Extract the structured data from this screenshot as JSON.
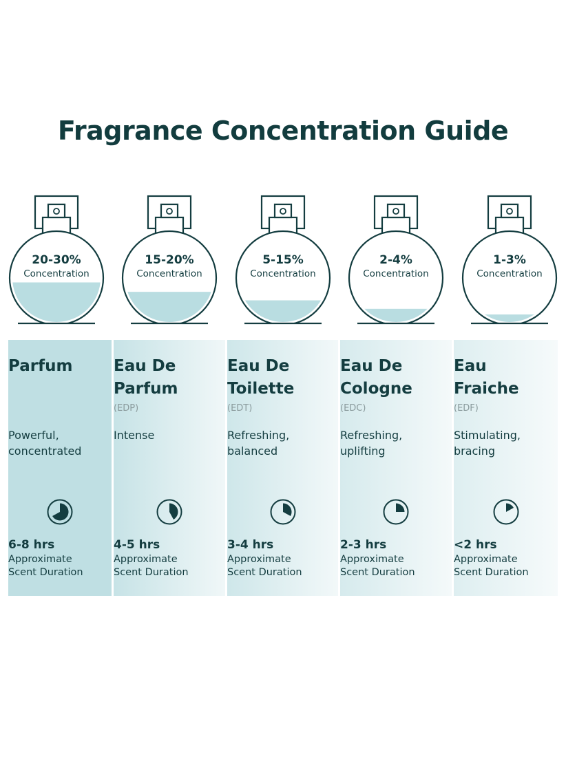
{
  "title": "Fragrance Concentration Guide",
  "colors": {
    "ink": "#143d40",
    "liquid": "#b9dde1",
    "panel_dark": "#bfdfe3",
    "panel_light": "#eef6f7"
  },
  "types": [
    {
      "percent": "20-30%",
      "concentration_label": "Concentration",
      "fill_level": 0.42,
      "name_lines": [
        "Parfum",
        ""
      ],
      "abbr": "",
      "desc_lines": [
        "Powerful,",
        "concentrated"
      ],
      "duration": "6-8 hrs",
      "duration_fraction": 0.67,
      "sub_lines": [
        "Approximate",
        "Scent Duration"
      ]
    },
    {
      "percent": "15-20%",
      "concentration_label": "Concentration",
      "fill_level": 0.32,
      "name_lines": [
        "Eau De",
        "Parfum"
      ],
      "abbr": "(EDP)",
      "desc_lines": [
        "Intense",
        ""
      ],
      "duration": "4-5 hrs",
      "duration_fraction": 0.42,
      "sub_lines": [
        "Approximate",
        "Scent Duration"
      ]
    },
    {
      "percent": "5-15%",
      "concentration_label": "Concentration",
      "fill_level": 0.23,
      "name_lines": [
        "Eau De",
        "Toilette"
      ],
      "abbr": "(EDT)",
      "desc_lines": [
        "Refreshing,",
        "balanced"
      ],
      "duration": "3-4 hrs",
      "duration_fraction": 0.33,
      "sub_lines": [
        "Approximate",
        "Scent Duration"
      ]
    },
    {
      "percent": "2-4%",
      "concentration_label": "Concentration",
      "fill_level": 0.14,
      "name_lines": [
        "Eau De",
        "Cologne"
      ],
      "abbr": "(EDC)",
      "desc_lines": [
        "Refreshing,",
        "uplifting"
      ],
      "duration": "2-3 hrs",
      "duration_fraction": 0.25,
      "sub_lines": [
        "Approximate",
        "Scent Duration"
      ]
    },
    {
      "percent": "1-3%",
      "concentration_label": "Concentration",
      "fill_level": 0.08,
      "name_lines": [
        "Eau",
        "Fraiche"
      ],
      "abbr": "(EDF)",
      "desc_lines": [
        "Stimulating,",
        "bracing"
      ],
      "duration": "<2 hrs",
      "duration_fraction": 0.17,
      "sub_lines": [
        "Approximate",
        "Scent Duration"
      ]
    }
  ]
}
